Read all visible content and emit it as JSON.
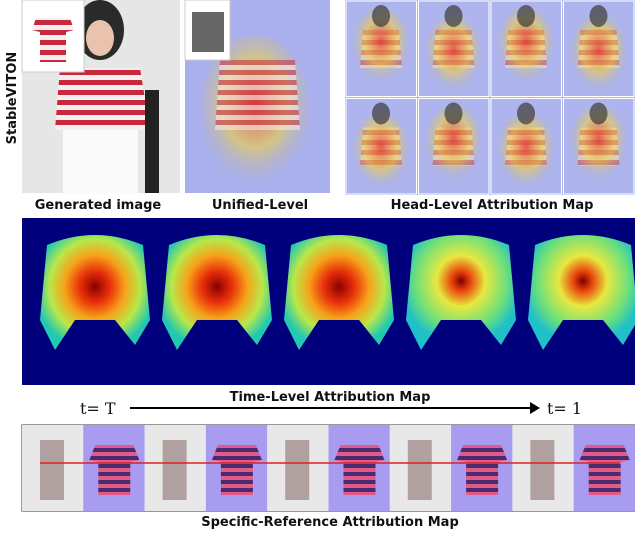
{
  "figure": {
    "row_label": "StableVITON",
    "captions": {
      "generated": "Generated image",
      "unified": "Unified-Level",
      "head": "Head-Level Attribution Map",
      "time": "Time-Level Attribution Map",
      "reference": "Specific-Reference Attribution Map"
    },
    "time_axis": {
      "start": "t= T",
      "end": "t= 1"
    }
  }
}
